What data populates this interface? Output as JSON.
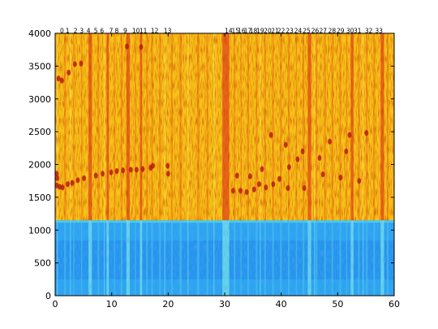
{
  "chart_data": {
    "type": "heatmap",
    "title": "",
    "xlabel": "",
    "ylabel": "",
    "xlim": [
      0,
      60
    ],
    "ylim": [
      0,
      4000
    ],
    "x_ticks": [
      0,
      10,
      20,
      30,
      40,
      50,
      60
    ],
    "y_ticks": [
      0,
      500,
      1000,
      1500,
      2000,
      2500,
      3000,
      3500,
      4000
    ],
    "grid": false,
    "colormap": "jet",
    "band_split": 1150,
    "segment_labels": [
      {
        "label": "0",
        "x": 1.2
      },
      {
        "label": "1",
        "x": 2.2
      },
      {
        "label": "2",
        "x": 3.6
      },
      {
        "label": "3",
        "x": 4.7
      },
      {
        "label": "4",
        "x": 5.9
      },
      {
        "label": "5",
        "x": 7.2
      },
      {
        "label": "6",
        "x": 8.3
      },
      {
        "label": "7",
        "x": 9.9
      },
      {
        "label": "8",
        "x": 10.9
      },
      {
        "label": "9",
        "x": 12.4
      },
      {
        "label": "10",
        "x": 14.3
      },
      {
        "label": "11",
        "x": 15.6
      },
      {
        "label": "12",
        "x": 17.6
      },
      {
        "label": "13",
        "x": 19.9
      },
      {
        "label": "14",
        "x": 30.7
      },
      {
        "label": "15",
        "x": 31.9
      },
      {
        "label": "16",
        "x": 33.0
      },
      {
        "label": "17",
        "x": 34.1
      },
      {
        "label": "18",
        "x": 35.1
      },
      {
        "label": "19",
        "x": 36.3
      },
      {
        "label": "20",
        "x": 37.6
      },
      {
        "label": "21",
        "x": 38.9
      },
      {
        "label": "22",
        "x": 40.0
      },
      {
        "label": "23",
        "x": 41.5
      },
      {
        "label": "24",
        "x": 43.0
      },
      {
        "label": "25",
        "x": 44.5
      },
      {
        "label": "26",
        "x": 46.0
      },
      {
        "label": "27",
        "x": 47.4
      },
      {
        "label": "28",
        "x": 49.0
      },
      {
        "label": "29",
        "x": 50.5
      },
      {
        "label": "30",
        "x": 52.2
      },
      {
        "label": "31",
        "x": 53.5
      },
      {
        "label": "32",
        "x": 55.5
      },
      {
        "label": "33",
        "x": 57.3
      }
    ],
    "strong_columns": [
      {
        "x0": 5.9,
        "x1": 6.5
      },
      {
        "x0": 9.1,
        "x1": 9.5
      },
      {
        "x0": 12.6,
        "x1": 13.2
      },
      {
        "x0": 15.0,
        "x1": 15.4
      },
      {
        "x0": 29.6,
        "x1": 30.8
      },
      {
        "x0": 44.7,
        "x1": 45.3
      },
      {
        "x0": 52.3,
        "x1": 52.8
      },
      {
        "x0": 57.6,
        "x1": 58.2
      }
    ],
    "medium_columns": [
      {
        "x0": 1.6,
        "x1": 1.9
      },
      {
        "x0": 3.2,
        "x1": 3.4
      },
      {
        "x0": 4.6,
        "x1": 4.8
      },
      {
        "x0": 7.5,
        "x1": 7.8
      },
      {
        "x0": 10.4,
        "x1": 10.6
      },
      {
        "x0": 11.6,
        "x1": 11.9
      },
      {
        "x0": 14.1,
        "x1": 14.3
      },
      {
        "x0": 16.1,
        "x1": 16.4
      },
      {
        "x0": 17.0,
        "x1": 17.3
      },
      {
        "x0": 18.4,
        "x1": 18.7
      },
      {
        "x0": 20.5,
        "x1": 20.8
      },
      {
        "x0": 22.0,
        "x1": 22.4
      },
      {
        "x0": 25.1,
        "x1": 25.5
      },
      {
        "x0": 26.8,
        "x1": 27.1
      },
      {
        "x0": 31.6,
        "x1": 31.9
      },
      {
        "x0": 32.8,
        "x1": 33.0
      },
      {
        "x0": 34.0,
        "x1": 34.3
      },
      {
        "x0": 35.5,
        "x1": 35.8
      },
      {
        "x0": 37.0,
        "x1": 37.3
      },
      {
        "x0": 38.4,
        "x1": 38.7
      },
      {
        "x0": 39.8,
        "x1": 40.1
      },
      {
        "x0": 41.2,
        "x1": 41.5
      },
      {
        "x0": 42.6,
        "x1": 42.8
      },
      {
        "x0": 43.8,
        "x1": 44.1
      },
      {
        "x0": 46.1,
        "x1": 46.4
      },
      {
        "x0": 47.6,
        "x1": 47.9
      },
      {
        "x0": 48.9,
        "x1": 49.2
      },
      {
        "x0": 50.3,
        "x1": 50.6
      },
      {
        "x0": 51.5,
        "x1": 51.7
      },
      {
        "x0": 53.6,
        "x1": 53.9
      },
      {
        "x0": 55.0,
        "x1": 55.3
      },
      {
        "x0": 56.3,
        "x1": 56.6
      },
      {
        "x0": 58.7,
        "x1": 59.0
      }
    ],
    "light_columns": [
      {
        "x0": 0.3,
        "x1": 0.5
      },
      {
        "x0": 2.6,
        "x1": 2.8
      },
      {
        "x0": 8.6,
        "x1": 8.8
      },
      {
        "x0": 19.3,
        "x1": 19.5
      },
      {
        "x0": 23.4,
        "x1": 23.6
      },
      {
        "x0": 28.0,
        "x1": 28.2
      },
      {
        "x0": 36.2,
        "x1": 36.4
      },
      {
        "x0": 45.8,
        "x1": 46.0
      },
      {
        "x0": 54.4,
        "x1": 54.6
      }
    ],
    "hot_spots": [
      {
        "x": 0.3,
        "y": 1860
      },
      {
        "x": 0.4,
        "y": 1790
      },
      {
        "x": 0.3,
        "y": 1680
      },
      {
        "x": 0.8,
        "y": 1660
      },
      {
        "x": 1.3,
        "y": 1650
      },
      {
        "x": 2.2,
        "y": 1700
      },
      {
        "x": 3.0,
        "y": 1720
      },
      {
        "x": 4.0,
        "y": 1760
      },
      {
        "x": 5.1,
        "y": 1790
      },
      {
        "x": 7.2,
        "y": 1830
      },
      {
        "x": 8.4,
        "y": 1860
      },
      {
        "x": 9.9,
        "y": 1880
      },
      {
        "x": 10.9,
        "y": 1900
      },
      {
        "x": 12.0,
        "y": 1910
      },
      {
        "x": 13.4,
        "y": 1920
      },
      {
        "x": 14.4,
        "y": 1920
      },
      {
        "x": 15.5,
        "y": 1930
      },
      {
        "x": 16.9,
        "y": 1950
      },
      {
        "x": 17.3,
        "y": 1980
      },
      {
        "x": 19.9,
        "y": 1980
      },
      {
        "x": 20.0,
        "y": 1860
      },
      {
        "x": 0.6,
        "y": 3310
      },
      {
        "x": 1.2,
        "y": 3280
      },
      {
        "x": 2.4,
        "y": 3400
      },
      {
        "x": 3.5,
        "y": 3530
      },
      {
        "x": 4.6,
        "y": 3540
      },
      {
        "x": 12.7,
        "y": 3800
      },
      {
        "x": 15.2,
        "y": 3790
      },
      {
        "x": 31.5,
        "y": 1600
      },
      {
        "x": 32.8,
        "y": 1600
      },
      {
        "x": 33.9,
        "y": 1580
      },
      {
        "x": 35.2,
        "y": 1620
      },
      {
        "x": 36.1,
        "y": 1700
      },
      {
        "x": 37.3,
        "y": 1650
      },
      {
        "x": 38.6,
        "y": 1700
      },
      {
        "x": 39.7,
        "y": 1780
      },
      {
        "x": 41.2,
        "y": 1640
      },
      {
        "x": 41.4,
        "y": 1960
      },
      {
        "x": 42.9,
        "y": 2080
      },
      {
        "x": 43.8,
        "y": 2200
      },
      {
        "x": 44.1,
        "y": 1640
      },
      {
        "x": 46.8,
        "y": 2100
      },
      {
        "x": 47.4,
        "y": 1850
      },
      {
        "x": 48.6,
        "y": 2350
      },
      {
        "x": 50.5,
        "y": 1800
      },
      {
        "x": 51.5,
        "y": 2200
      },
      {
        "x": 52.1,
        "y": 2450
      },
      {
        "x": 55.1,
        "y": 2480
      },
      {
        "x": 53.8,
        "y": 1750
      },
      {
        "x": 32.2,
        "y": 1830
      },
      {
        "x": 34.5,
        "y": 1820
      },
      {
        "x": 36.6,
        "y": 1930
      },
      {
        "x": 38.2,
        "y": 2450
      },
      {
        "x": 40.8,
        "y": 2300
      }
    ]
  }
}
